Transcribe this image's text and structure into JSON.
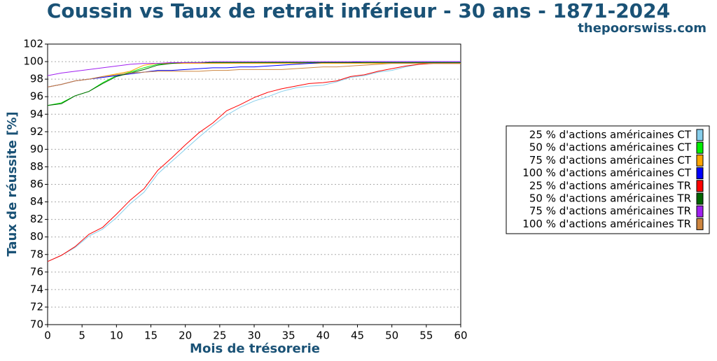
{
  "chart_data": {
    "type": "line",
    "title": "Coussin vs Taux de retrait inférieur - 30 ans - 1871-2024",
    "subtitle": "thepoorswiss.com",
    "xlabel": "Mois de trésorerie",
    "ylabel": "Taux de réussite [%]",
    "x": [
      0,
      2,
      4,
      6,
      8,
      10,
      12,
      14,
      16,
      18,
      20,
      22,
      24,
      26,
      28,
      30,
      32,
      34,
      36,
      38,
      40,
      42,
      44,
      46,
      48,
      50,
      52,
      54,
      56,
      58,
      60
    ],
    "xlim": [
      0,
      60
    ],
    "xticks": [
      0,
      5,
      10,
      15,
      20,
      25,
      30,
      35,
      40,
      45,
      50,
      55,
      60
    ],
    "ylim": [
      70,
      102
    ],
    "yticks": [
      70,
      72,
      74,
      76,
      78,
      80,
      82,
      84,
      86,
      88,
      90,
      92,
      94,
      96,
      98,
      100,
      102
    ],
    "grid": true,
    "legend": "right",
    "series": [
      {
        "name": "25 % d'actions américaines CT",
        "color": "#87ceeb",
        "values": [
          77.2,
          77.9,
          78.8,
          80.1,
          80.9,
          82.2,
          83.8,
          85.1,
          87.2,
          88.6,
          90.0,
          91.4,
          92.7,
          93.9,
          94.8,
          95.5,
          96.0,
          96.6,
          97.0,
          97.2,
          97.3,
          97.7,
          98.2,
          98.4,
          98.8,
          99.0,
          99.4,
          99.7,
          99.8,
          99.8,
          99.8
        ]
      },
      {
        "name": "50 % d'actions américaines CT",
        "color": "#00ee00",
        "values": [
          95.0,
          95.3,
          96.1,
          96.6,
          97.6,
          98.4,
          98.8,
          99.3,
          99.7,
          99.8,
          99.9,
          99.9,
          99.9,
          99.9,
          99.9,
          99.9,
          99.9,
          99.9,
          99.9,
          99.9,
          99.9,
          99.9,
          99.9,
          99.9,
          99.9,
          99.9,
          99.9,
          99.9,
          99.9,
          99.9,
          99.9
        ]
      },
      {
        "name": "75 % d'actions américaines CT",
        "color": "#ffa500",
        "values": [
          97.1,
          97.4,
          97.8,
          98.0,
          98.3,
          98.6,
          98.9,
          99.6,
          99.8,
          99.8,
          99.8,
          99.8,
          99.8,
          99.8,
          99.8,
          99.8,
          99.8,
          99.8,
          99.8,
          99.8,
          99.8,
          99.8,
          99.8,
          99.8,
          99.8,
          99.8,
          99.8,
          99.8,
          99.8,
          99.8,
          99.8
        ]
      },
      {
        "name": "100 % d'actions américaines CT",
        "color": "#0000ff",
        "values": [
          97.1,
          97.4,
          97.8,
          98.0,
          98.2,
          98.4,
          98.6,
          98.8,
          99.0,
          99.0,
          99.1,
          99.2,
          99.3,
          99.3,
          99.4,
          99.4,
          99.5,
          99.6,
          99.7,
          99.8,
          99.9,
          99.9,
          99.9,
          100,
          100,
          100,
          100,
          100,
          100,
          100,
          100
        ]
      },
      {
        "name": "25 % d'actions américaines TR",
        "color": "#ff0000",
        "values": [
          77.2,
          77.9,
          78.9,
          80.3,
          81.1,
          82.6,
          84.2,
          85.5,
          87.6,
          89.0,
          90.5,
          91.9,
          93.0,
          94.4,
          95.1,
          95.9,
          96.5,
          96.9,
          97.2,
          97.5,
          97.6,
          97.8,
          98.3,
          98.5,
          98.9,
          99.2,
          99.5,
          99.7,
          99.8,
          99.8,
          99.8
        ]
      },
      {
        "name": "50 % d'actions américaines TR",
        "color": "#006400",
        "values": [
          95.0,
          95.2,
          96.1,
          96.6,
          97.5,
          98.3,
          98.7,
          99.1,
          99.6,
          99.8,
          99.9,
          99.9,
          99.9,
          99.9,
          99.9,
          99.9,
          99.9,
          99.9,
          99.9,
          99.9,
          99.9,
          99.9,
          99.9,
          99.9,
          99.9,
          99.9,
          99.9,
          99.9,
          99.9,
          99.9,
          99.9
        ]
      },
      {
        "name": "75 % d'actions américaines TR",
        "color": "#a020f0",
        "values": [
          98.4,
          98.7,
          98.9,
          99.1,
          99.3,
          99.5,
          99.7,
          99.8,
          99.8,
          99.9,
          99.9,
          99.9,
          100,
          100,
          100,
          100,
          100,
          100,
          100,
          100,
          100,
          100,
          100,
          100,
          100,
          100,
          100,
          100,
          100,
          100,
          100
        ]
      },
      {
        "name": "100 % d'actions américaines TR",
        "color": "#cd853f",
        "values": [
          97.1,
          97.4,
          97.8,
          98.0,
          98.3,
          98.5,
          98.7,
          98.8,
          98.9,
          98.9,
          98.9,
          98.9,
          99.0,
          99.0,
          99.1,
          99.1,
          99.1,
          99.1,
          99.2,
          99.3,
          99.4,
          99.4,
          99.5,
          99.6,
          99.7,
          99.8,
          99.8,
          99.8,
          99.8,
          99.8,
          99.8
        ]
      }
    ]
  }
}
